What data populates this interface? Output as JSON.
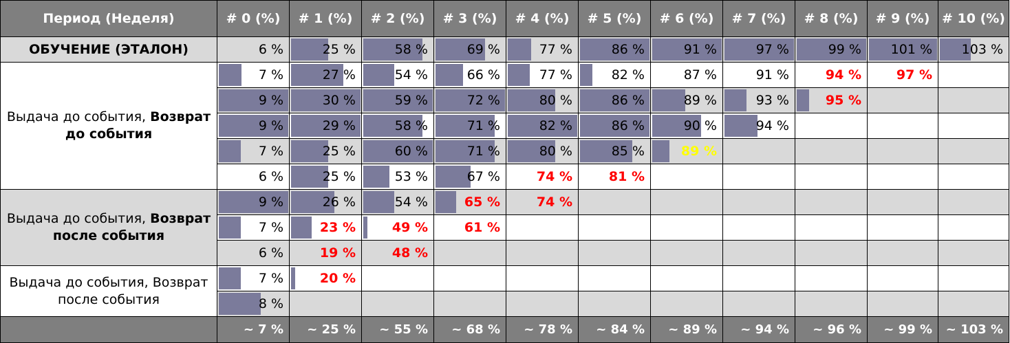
{
  "headers": [
    "Период (Неделя)",
    "# 0 (%)",
    "# 1 (%)",
    "# 2 (%)",
    "# 3 (%)",
    "# 4 (%)",
    "# 5 (%)",
    "# 6 (%)",
    "# 7 (%)",
    "# 8 (%)",
    "# 9 (%)",
    "# 10 (%)"
  ],
  "groups": [
    {
      "label_plain": "",
      "label_bold": "ОБУЧЕНИЕ (ЭТАЛОН)",
      "shade": "gray",
      "row_start": 0,
      "row_count": 1,
      "kind": "etalon"
    },
    {
      "label_plain": "Выдача до события, ",
      "label_bold": "Возврат до события",
      "shade": "white",
      "row_start": 1,
      "row_count": 5,
      "kind": "normal"
    },
    {
      "label_plain": "Выдача до события, ",
      "label_bold": "Возврат после события",
      "shade": "gray",
      "row_start": 6,
      "row_count": 3,
      "kind": "normal"
    },
    {
      "label_plain": "Выдача до события, Возврат после события",
      "label_bold": "",
      "shade": "white",
      "row_start": 9,
      "row_count": 2,
      "kind": "normal"
    }
  ],
  "rows": [
    {
      "shade": "gray",
      "cells": [
        {
          "text": "6 %",
          "bar": 0,
          "style": "normal"
        },
        {
          "text": "25 %",
          "bar": 0.53,
          "style": "normal"
        },
        {
          "text": "58 %",
          "bar": 0.85,
          "style": "normal"
        },
        {
          "text": "69 %",
          "bar": 0.71,
          "style": "normal"
        },
        {
          "text": "77 %",
          "bar": 0.34,
          "style": "normal"
        },
        {
          "text": "86 %",
          "bar": 1.0,
          "style": "normal"
        },
        {
          "text": "91 %",
          "bar": 1.0,
          "style": "normal"
        },
        {
          "text": "97 %",
          "bar": 1.0,
          "style": "normal"
        },
        {
          "text": "99 %",
          "bar": 1.0,
          "style": "normal"
        },
        {
          "text": "101 %",
          "bar": 1.0,
          "style": "normal"
        },
        {
          "text": "103 %",
          "bar": 0.45,
          "style": "normal"
        }
      ]
    },
    {
      "shade": "white",
      "cells": [
        {
          "text": "7 %",
          "bar": 0.33,
          "style": "normal"
        },
        {
          "text": "27 %",
          "bar": 0.75,
          "style": "normal"
        },
        {
          "text": "54 %",
          "bar": 0.45,
          "style": "normal"
        },
        {
          "text": "66 %",
          "bar": 0.4,
          "style": "normal"
        },
        {
          "text": "77 %",
          "bar": 0.32,
          "style": "normal"
        },
        {
          "text": "82 %",
          "bar": 0.18,
          "style": "normal"
        },
        {
          "text": "87 %",
          "bar": 0,
          "style": "normal"
        },
        {
          "text": "91 %",
          "bar": 0,
          "style": "normal"
        },
        {
          "text": "94 %",
          "bar": 0,
          "style": "red"
        },
        {
          "text": "97 %",
          "bar": 0,
          "style": "red"
        },
        {
          "text": "",
          "bar": 0,
          "style": "normal"
        }
      ]
    },
    {
      "shade": "gray",
      "cells": [
        {
          "text": "9 %",
          "bar": 1.0,
          "style": "normal"
        },
        {
          "text": "30 %",
          "bar": 1.0,
          "style": "normal"
        },
        {
          "text": "59 %",
          "bar": 1.0,
          "style": "normal"
        },
        {
          "text": "72 %",
          "bar": 1.0,
          "style": "normal"
        },
        {
          "text": "80 %",
          "bar": 0.68,
          "style": "normal"
        },
        {
          "text": "86 %",
          "bar": 1.0,
          "style": "normal"
        },
        {
          "text": "89 %",
          "bar": 0.48,
          "style": "normal"
        },
        {
          "text": "93 %",
          "bar": 0.32,
          "style": "normal"
        },
        {
          "text": "95 %",
          "bar": 0.18,
          "style": "red"
        },
        {
          "text": "",
          "bar": 0,
          "style": "normal"
        },
        {
          "text": "",
          "bar": 0,
          "style": "normal"
        }
      ]
    },
    {
      "shade": "white",
      "cells": [
        {
          "text": "9 %",
          "bar": 1.0,
          "style": "normal"
        },
        {
          "text": "29 %",
          "bar": 1.0,
          "style": "normal"
        },
        {
          "text": "58 %",
          "bar": 0.85,
          "style": "normal"
        },
        {
          "text": "71 %",
          "bar": 0.85,
          "style": "normal"
        },
        {
          "text": "82 %",
          "bar": 1.0,
          "style": "normal"
        },
        {
          "text": "86 %",
          "bar": 1.0,
          "style": "normal"
        },
        {
          "text": "90 %",
          "bar": 0.7,
          "style": "normal"
        },
        {
          "text": "94 %",
          "bar": 0.48,
          "style": "normal"
        },
        {
          "text": "",
          "bar": 0,
          "style": "normal"
        },
        {
          "text": "",
          "bar": 0,
          "style": "normal"
        },
        {
          "text": "",
          "bar": 0,
          "style": "normal"
        }
      ]
    },
    {
      "shade": "gray",
      "cells": [
        {
          "text": "7 %",
          "bar": 0.32,
          "style": "normal"
        },
        {
          "text": "25 %",
          "bar": 0.53,
          "style": "normal"
        },
        {
          "text": "60 %",
          "bar": 1.0,
          "style": "normal"
        },
        {
          "text": "71 %",
          "bar": 0.85,
          "style": "normal"
        },
        {
          "text": "80 %",
          "bar": 0.68,
          "style": "normal"
        },
        {
          "text": "85 %",
          "bar": 0.75,
          "style": "normal"
        },
        {
          "text": "89 %",
          "bar": 0.25,
          "style": "yellow"
        },
        {
          "text": "",
          "bar": 0,
          "style": "normal"
        },
        {
          "text": "",
          "bar": 0,
          "style": "normal"
        },
        {
          "text": "",
          "bar": 0,
          "style": "normal"
        },
        {
          "text": "",
          "bar": 0,
          "style": "normal"
        }
      ]
    },
    {
      "shade": "white",
      "cells": [
        {
          "text": "6 %",
          "bar": 0,
          "style": "normal"
        },
        {
          "text": "25 %",
          "bar": 0.53,
          "style": "normal"
        },
        {
          "text": "53 %",
          "bar": 0.38,
          "style": "normal"
        },
        {
          "text": "67 %",
          "bar": 0.5,
          "style": "normal"
        },
        {
          "text": "74 %",
          "bar": 0,
          "style": "red"
        },
        {
          "text": "81 %",
          "bar": 0,
          "style": "red"
        },
        {
          "text": "",
          "bar": 0,
          "style": "normal"
        },
        {
          "text": "",
          "bar": 0,
          "style": "normal"
        },
        {
          "text": "",
          "bar": 0,
          "style": "normal"
        },
        {
          "text": "",
          "bar": 0,
          "style": "normal"
        },
        {
          "text": "",
          "bar": 0,
          "style": "normal"
        }
      ]
    },
    {
      "shade": "gray",
      "cells": [
        {
          "text": "9 %",
          "bar": 1.0,
          "style": "normal"
        },
        {
          "text": "26 %",
          "bar": 0.62,
          "style": "normal"
        },
        {
          "text": "54 %",
          "bar": 0.45,
          "style": "normal"
        },
        {
          "text": "65 %",
          "bar": 0.3,
          "style": "red"
        },
        {
          "text": "74 %",
          "bar": 0,
          "style": "red"
        },
        {
          "text": "",
          "bar": 0,
          "style": "normal"
        },
        {
          "text": "",
          "bar": 0,
          "style": "normal"
        },
        {
          "text": "",
          "bar": 0,
          "style": "normal"
        },
        {
          "text": "",
          "bar": 0,
          "style": "normal"
        },
        {
          "text": "",
          "bar": 0,
          "style": "normal"
        },
        {
          "text": "",
          "bar": 0,
          "style": "normal"
        }
      ]
    },
    {
      "shade": "white",
      "cells": [
        {
          "text": "7 %",
          "bar": 0.32,
          "style": "normal"
        },
        {
          "text": "23 %",
          "bar": 0.3,
          "style": "red"
        },
        {
          "text": "49 %",
          "bar": 0.06,
          "style": "red"
        },
        {
          "text": "61 %",
          "bar": 0,
          "style": "red"
        },
        {
          "text": "",
          "bar": 0,
          "style": "normal"
        },
        {
          "text": "",
          "bar": 0,
          "style": "normal"
        },
        {
          "text": "",
          "bar": 0,
          "style": "normal"
        },
        {
          "text": "",
          "bar": 0,
          "style": "normal"
        },
        {
          "text": "",
          "bar": 0,
          "style": "normal"
        },
        {
          "text": "",
          "bar": 0,
          "style": "normal"
        },
        {
          "text": "",
          "bar": 0,
          "style": "normal"
        }
      ]
    },
    {
      "shade": "gray",
      "cells": [
        {
          "text": "6 %",
          "bar": 0,
          "style": "normal"
        },
        {
          "text": "19 %",
          "bar": 0,
          "style": "red"
        },
        {
          "text": "48 %",
          "bar": 0,
          "style": "red"
        },
        {
          "text": "",
          "bar": 0,
          "style": "normal"
        },
        {
          "text": "",
          "bar": 0,
          "style": "normal"
        },
        {
          "text": "",
          "bar": 0,
          "style": "normal"
        },
        {
          "text": "",
          "bar": 0,
          "style": "normal"
        },
        {
          "text": "",
          "bar": 0,
          "style": "normal"
        },
        {
          "text": "",
          "bar": 0,
          "style": "normal"
        },
        {
          "text": "",
          "bar": 0,
          "style": "normal"
        },
        {
          "text": "",
          "bar": 0,
          "style": "normal"
        }
      ]
    },
    {
      "shade": "white",
      "cells": [
        {
          "text": "7 %",
          "bar": 0.32,
          "style": "normal"
        },
        {
          "text": "20 %",
          "bar": 0.06,
          "style": "red"
        },
        {
          "text": "",
          "bar": 0,
          "style": "normal"
        },
        {
          "text": "",
          "bar": 0,
          "style": "normal"
        },
        {
          "text": "",
          "bar": 0,
          "style": "normal"
        },
        {
          "text": "",
          "bar": 0,
          "style": "normal"
        },
        {
          "text": "",
          "bar": 0,
          "style": "normal"
        },
        {
          "text": "",
          "bar": 0,
          "style": "normal"
        },
        {
          "text": "",
          "bar": 0,
          "style": "normal"
        },
        {
          "text": "",
          "bar": 0,
          "style": "normal"
        },
        {
          "text": "",
          "bar": 0,
          "style": "normal"
        }
      ]
    },
    {
      "shade": "gray",
      "cells": [
        {
          "text": "8 %",
          "bar": 0.6,
          "style": "normal"
        },
        {
          "text": "",
          "bar": 0,
          "style": "normal"
        },
        {
          "text": "",
          "bar": 0,
          "style": "normal"
        },
        {
          "text": "",
          "bar": 0,
          "style": "normal"
        },
        {
          "text": "",
          "bar": 0,
          "style": "normal"
        },
        {
          "text": "",
          "bar": 0,
          "style": "normal"
        },
        {
          "text": "",
          "bar": 0,
          "style": "normal"
        },
        {
          "text": "",
          "bar": 0,
          "style": "normal"
        },
        {
          "text": "",
          "bar": 0,
          "style": "normal"
        },
        {
          "text": "",
          "bar": 0,
          "style": "normal"
        },
        {
          "text": "",
          "bar": 0,
          "style": "normal"
        }
      ]
    }
  ],
  "footer": [
    "",
    "~ 7 %",
    "~ 25 %",
    "~ 55 %",
    "~ 68 %",
    "~ 78 %",
    "~ 84 %",
    "~ 89 %",
    "~ 94 %",
    "~ 96 %",
    "~ 99 %",
    "~ 103 %"
  ],
  "colors": {
    "header_bg": "#7f7f7f",
    "bar": "#7b7b9b",
    "shade_gray": "#d9d9d9",
    "highlight_red": "#ff0000",
    "highlight_yellow": "#ffff00"
  }
}
